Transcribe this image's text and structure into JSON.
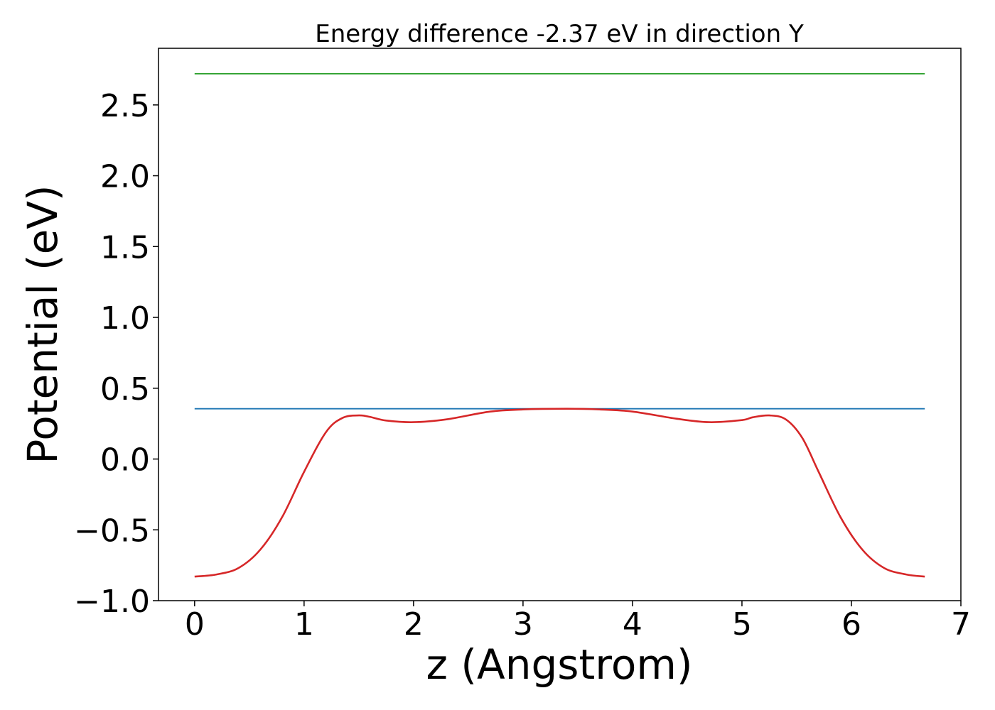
{
  "chart_data": {
    "type": "line",
    "title": "Energy difference -2.37 eV in direction Y",
    "xlabel": "z (Angstrom)",
    "ylabel": "Potential (eV)",
    "xlim": [
      -0.33,
      7.0
    ],
    "ylim": [
      -1.0,
      2.9
    ],
    "xticks": [
      0,
      1,
      2,
      3,
      4,
      5,
      6,
      7
    ],
    "xtick_labels": [
      "0",
      "1",
      "2",
      "3",
      "4",
      "5",
      "6",
      "7"
    ],
    "yticks": [
      -1.0,
      -0.5,
      0.0,
      0.5,
      1.0,
      1.5,
      2.0,
      2.5
    ],
    "ytick_labels": [
      "−1.0",
      "−0.5",
      "0.0",
      "0.5",
      "1.0",
      "1.5",
      "2.0",
      "2.5"
    ],
    "grid": false,
    "series": [
      {
        "color": "#2ca02c",
        "style": "horizontal",
        "x": [
          0,
          6.67
        ],
        "y": [
          2.72,
          2.72
        ]
      },
      {
        "color": "#1f77b4",
        "style": "horizontal",
        "x": [
          0,
          6.67
        ],
        "y": [
          0.355,
          0.355
        ]
      },
      {
        "color": "#d62728",
        "style": "curve",
        "x": [
          0,
          0.2,
          0.4,
          0.6,
          0.8,
          1.0,
          1.2,
          1.35,
          1.5,
          1.6,
          1.75,
          2.0,
          2.3,
          2.7,
          3.0,
          3.4,
          3.7,
          4.0,
          4.4,
          4.7,
          5.0,
          5.1,
          5.25,
          5.4,
          5.55,
          5.7,
          5.9,
          6.1,
          6.3,
          6.5,
          6.67
        ],
        "y": [
          -0.83,
          -0.815,
          -0.77,
          -0.64,
          -0.41,
          -0.09,
          0.19,
          0.29,
          0.308,
          0.298,
          0.272,
          0.26,
          0.28,
          0.335,
          0.35,
          0.355,
          0.35,
          0.335,
          0.285,
          0.26,
          0.275,
          0.295,
          0.308,
          0.28,
          0.15,
          -0.09,
          -0.41,
          -0.64,
          -0.77,
          -0.815,
          -0.83
        ]
      }
    ]
  }
}
